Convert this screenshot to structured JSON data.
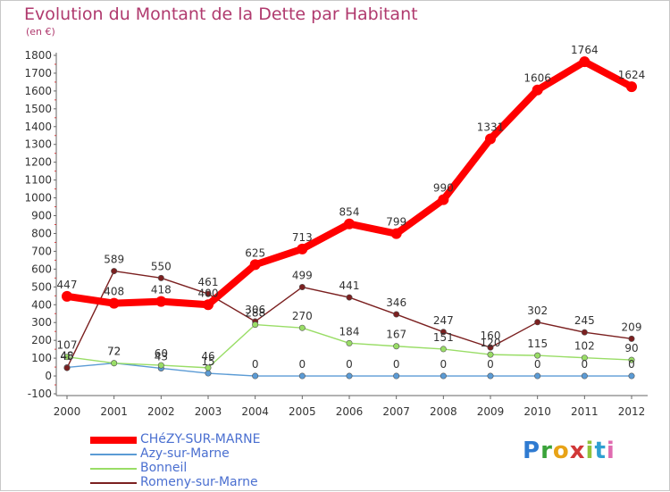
{
  "title": "Evolution du Montant de la Dette par Habitant",
  "subtitle": "(en €)",
  "logo": "Proxiti",
  "chart_data": {
    "type": "line",
    "title": "Evolution du Montant de la Dette par Habitant",
    "ylabel": "(en €)",
    "x": [
      "2000",
      "2001",
      "2002",
      "2003",
      "2004",
      "2005",
      "2006",
      "2007",
      "2008",
      "2009",
      "2010",
      "2011",
      "2012"
    ],
    "ylim": [
      -100,
      1800
    ],
    "yticks": [
      -100,
      0,
      100,
      200,
      300,
      400,
      500,
      600,
      700,
      800,
      900,
      1000,
      1100,
      1200,
      1300,
      1400,
      1500,
      1600,
      1700,
      1800
    ],
    "grid": false,
    "legend_position": "bottom-left",
    "series": [
      {
        "name": "CHéZY-SUR-MARNE",
        "color": "#ff0000",
        "values": [
          447,
          408,
          418,
          400,
          625,
          713,
          854,
          799,
          990,
          1331,
          1606,
          1764,
          1624
        ]
      },
      {
        "name": "Azy-sur-Marne",
        "color": "#5b9bd5",
        "values": [
          48,
          72,
          43,
          15,
          0,
          0,
          0,
          0,
          0,
          0,
          0,
          0,
          0
        ]
      },
      {
        "name": "Bonneil",
        "color": "#99dd66",
        "values": [
          107,
          72,
          60,
          46,
          288,
          270,
          184,
          167,
          151,
          120,
          115,
          102,
          90
        ]
      },
      {
        "name": "Romeny-sur-Marne",
        "color": "#7b2020",
        "values": [
          45,
          589,
          550,
          461,
          306,
          499,
          441,
          346,
          247,
          160,
          302,
          245,
          209
        ]
      }
    ]
  }
}
